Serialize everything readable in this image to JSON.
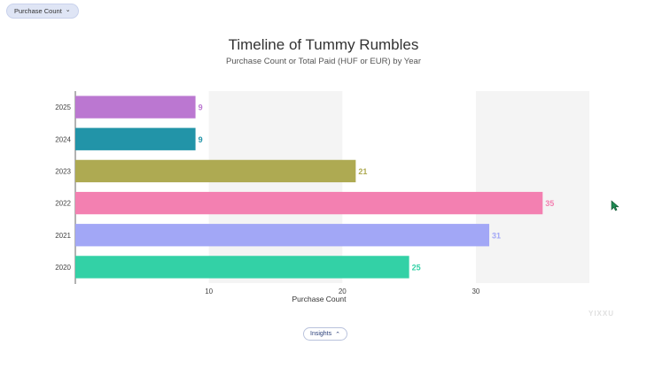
{
  "controls": {
    "metric_label": "Purchase Count",
    "insights_label": "Insights"
  },
  "watermark": "YIXXU",
  "icons": [
    "chevron-down-icon",
    "chevron-up-icon",
    "cursor-icon"
  ],
  "chart_data": {
    "type": "bar",
    "orientation": "horizontal",
    "title": "Timeline of Tummy Rumbles",
    "subtitle": "Purchase Count or Total Paid (HUF or EUR) by Year",
    "xlabel": "Purchase Count",
    "ylabel": "",
    "categories": [
      "2025",
      "2024",
      "2023",
      "2022",
      "2021",
      "2020"
    ],
    "values": [
      9,
      9,
      21,
      35,
      31,
      25
    ],
    "colors": [
      "#bb77d1",
      "#2294a8",
      "#aeaa52",
      "#f380b1",
      "#a2a7f6",
      "#33d1a6"
    ],
    "xlim": [
      0,
      38.5
    ],
    "xticks": [
      10,
      20,
      30
    ],
    "grid": "alternating vertical bands",
    "data_labels": true,
    "legend": "none"
  }
}
